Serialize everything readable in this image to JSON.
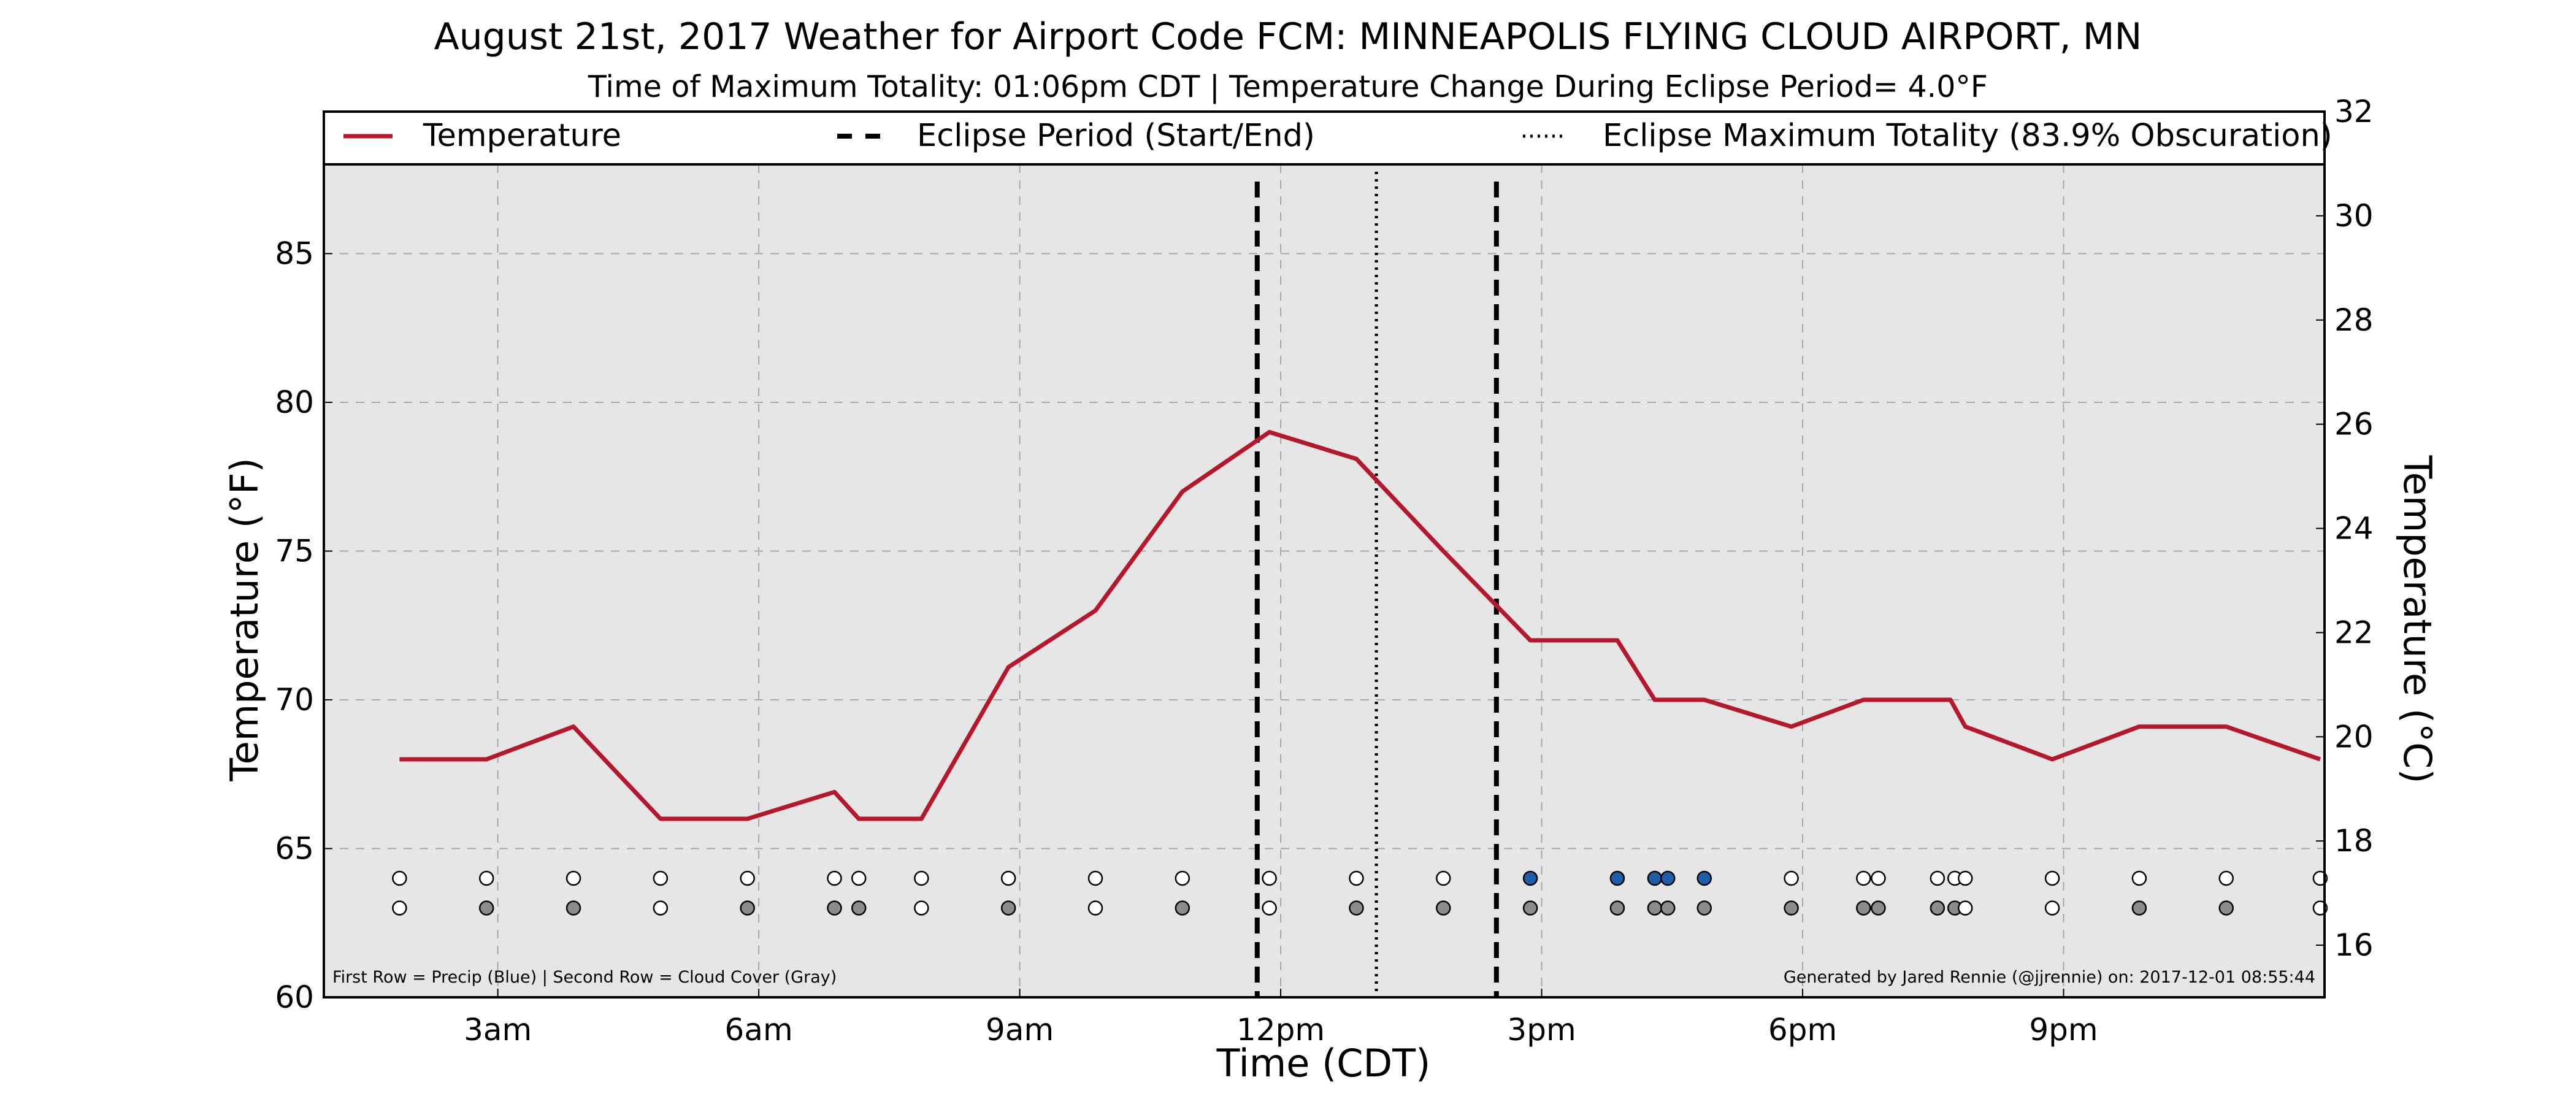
{
  "chart_data": {
    "type": "line",
    "title": "August 21st, 2017 Weather for Airport Code FCM: MINNEAPOLIS FLYING CLOUD AIRPORT, MN",
    "subtitle": "Time of Maximum Totality: 01:06pm CDT | Temperature Change During Eclipse Period= 4.0°F",
    "xlabel": "Time (CDT)",
    "ylabel": "Temperature (°F)",
    "ylabel_right": "Temperature (°C)",
    "x_ticks": [
      {
        "hour": 3,
        "label": "3am"
      },
      {
        "hour": 6,
        "label": "6am"
      },
      {
        "hour": 9,
        "label": "9am"
      },
      {
        "hour": 12,
        "label": "12pm"
      },
      {
        "hour": 15,
        "label": "3pm"
      },
      {
        "hour": 18,
        "label": "6pm"
      },
      {
        "hour": 21,
        "label": "9pm"
      }
    ],
    "xlim": [
      1.0,
      24.0
    ],
    "ylim": [
      60,
      88
    ],
    "y_ticks": [
      60,
      65,
      70,
      75,
      80,
      85
    ],
    "y_ticks_right": [
      16,
      18,
      20,
      22,
      24,
      26,
      28,
      30,
      32
    ],
    "ylim_right": [
      15.0,
      32.0
    ],
    "grid": true,
    "legend_position": "top",
    "legend": [
      {
        "label": "Temperature",
        "style": "solid",
        "color": "#b5182d"
      },
      {
        "label": "Eclipse Period (Start/End)",
        "style": "dashed",
        "color": "#000000"
      },
      {
        "label": "Eclipse Maximum Totality (83.9% Obscuration)",
        "style": "dotted",
        "color": "#000000"
      }
    ],
    "series": [
      {
        "name": "Temperature",
        "color": "#b5182d",
        "points": [
          [
            1.87,
            68.0
          ],
          [
            2.87,
            68.0
          ],
          [
            3.87,
            69.1
          ],
          [
            4.87,
            66.0
          ],
          [
            5.87,
            66.0
          ],
          [
            6.87,
            66.9
          ],
          [
            7.15,
            66.0
          ],
          [
            7.87,
            66.0
          ],
          [
            8.87,
            71.1
          ],
          [
            9.87,
            73.0
          ],
          [
            10.87,
            77.0
          ],
          [
            11.87,
            79.0
          ],
          [
            12.87,
            78.1
          ],
          [
            13.87,
            75.0
          ],
          [
            14.87,
            72.0
          ],
          [
            15.87,
            72.0
          ],
          [
            16.3,
            70.0
          ],
          [
            16.87,
            70.0
          ],
          [
            17.87,
            69.1
          ],
          [
            18.7,
            70.0
          ],
          [
            18.87,
            70.0
          ],
          [
            19.7,
            70.0
          ],
          [
            19.87,
            69.1
          ],
          [
            20.87,
            68.0
          ],
          [
            21.87,
            69.1
          ],
          [
            22.87,
            69.1
          ],
          [
            23.95,
            68.0
          ]
        ]
      }
    ],
    "eclipse": {
      "start_hour": 11.73,
      "end_hour": 14.48,
      "max_hour": 13.1,
      "obscuration": "83.9%"
    },
    "obs_markers": {
      "precip_row_value": 64.0,
      "cloud_row_value": 63.0,
      "precip": [
        [
          1.87,
          "none"
        ],
        [
          2.87,
          "none"
        ],
        [
          3.87,
          "none"
        ],
        [
          4.87,
          "none"
        ],
        [
          5.87,
          "none"
        ],
        [
          6.87,
          "none"
        ],
        [
          7.15,
          "none"
        ],
        [
          7.87,
          "none"
        ],
        [
          8.87,
          "none"
        ],
        [
          9.87,
          "none"
        ],
        [
          10.87,
          "none"
        ],
        [
          11.87,
          "none"
        ],
        [
          12.87,
          "none"
        ],
        [
          13.87,
          "none"
        ],
        [
          14.87,
          "rain"
        ],
        [
          15.87,
          "rain"
        ],
        [
          16.3,
          "rain"
        ],
        [
          16.45,
          "rain"
        ],
        [
          16.87,
          "rain"
        ],
        [
          17.87,
          "none"
        ],
        [
          18.7,
          "none"
        ],
        [
          18.87,
          "none"
        ],
        [
          19.55,
          "none"
        ],
        [
          19.75,
          "none"
        ],
        [
          19.87,
          "none"
        ],
        [
          20.87,
          "none"
        ],
        [
          21.87,
          "none"
        ],
        [
          22.87,
          "none"
        ],
        [
          23.95,
          "none"
        ]
      ],
      "cloud": [
        [
          1.87,
          "clear"
        ],
        [
          2.87,
          "cloudy"
        ],
        [
          3.87,
          "cloudy"
        ],
        [
          4.87,
          "clear"
        ],
        [
          5.87,
          "cloudy"
        ],
        [
          6.87,
          "cloudy"
        ],
        [
          7.15,
          "cloudy"
        ],
        [
          7.87,
          "clear"
        ],
        [
          8.87,
          "cloudy"
        ],
        [
          9.87,
          "clear"
        ],
        [
          10.87,
          "cloudy"
        ],
        [
          11.87,
          "clear"
        ],
        [
          12.87,
          "cloudy"
        ],
        [
          13.87,
          "cloudy"
        ],
        [
          14.87,
          "cloudy"
        ],
        [
          15.87,
          "cloudy"
        ],
        [
          16.3,
          "cloudy"
        ],
        [
          16.45,
          "cloudy"
        ],
        [
          16.87,
          "cloudy"
        ],
        [
          17.87,
          "cloudy"
        ],
        [
          18.7,
          "cloudy"
        ],
        [
          18.87,
          "cloudy"
        ],
        [
          19.55,
          "cloudy"
        ],
        [
          19.75,
          "cloudy"
        ],
        [
          19.87,
          "clear"
        ],
        [
          20.87,
          "clear"
        ],
        [
          21.87,
          "cloudy"
        ],
        [
          22.87,
          "cloudy"
        ],
        [
          23.95,
          "clear"
        ]
      ]
    },
    "footnote_left": "First Row = Precip (Blue) | Second Row = Cloud Cover (Gray)",
    "footnote_right": "Generated by Jared Rennie (@jjrennie) on: 2017-12-01 08:55:44",
    "colors": {
      "plot_bg": "#e6e6e6",
      "grid": "#a8a8a8",
      "temperature": "#b5182d",
      "precip_fill": "#1f5fa8",
      "cloud_fill": "#8c8c8c",
      "empty_fill": "#ffffff"
    }
  }
}
